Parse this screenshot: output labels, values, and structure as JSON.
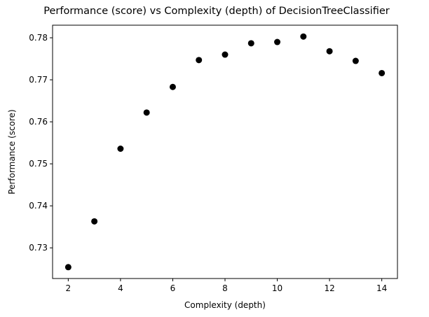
{
  "chart_data": {
    "type": "scatter",
    "title": "Performance (score) vs Complexity (depth) of DecisionTreeClassifier",
    "xlabel": "Complexity (depth)",
    "ylabel": "Performance (score)",
    "x": [
      2,
      3,
      4,
      5,
      6,
      7,
      8,
      9,
      10,
      11,
      12,
      13,
      14
    ],
    "y": [
      0.7254,
      0.7363,
      0.7536,
      0.7622,
      0.7683,
      0.7747,
      0.776,
      0.7787,
      0.779,
      0.7803,
      0.7768,
      0.7745,
      0.7716
    ],
    "xlim": [
      1.4,
      14.6
    ],
    "ylim": [
      0.7227,
      0.783
    ],
    "xticks": [
      2,
      4,
      6,
      8,
      10,
      12,
      14
    ],
    "xtick_labels": [
      "2",
      "4",
      "6",
      "8",
      "10",
      "12",
      "14"
    ],
    "yticks": [
      0.73,
      0.74,
      0.75,
      0.76,
      0.77,
      0.78
    ],
    "ytick_labels": [
      "0.73",
      "0.74",
      "0.75",
      "0.76",
      "0.77",
      "0.78"
    ],
    "grid": false,
    "marker_color": "#000000"
  }
}
